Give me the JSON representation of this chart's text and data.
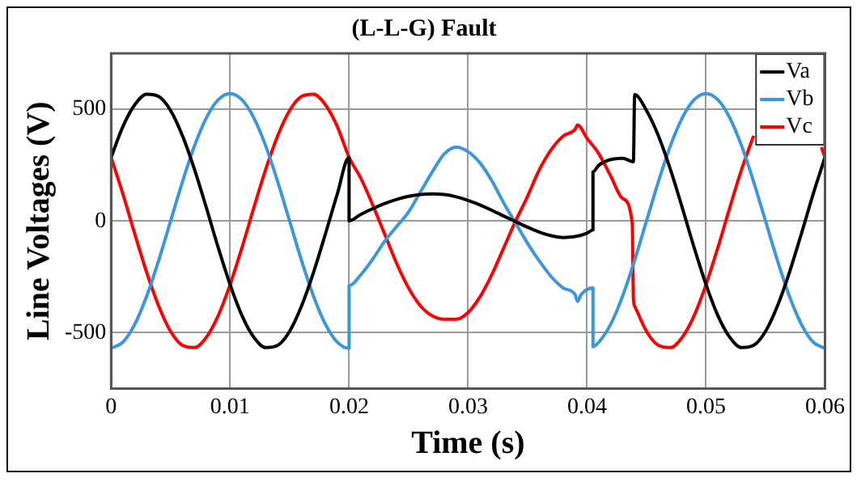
{
  "chart_data": {
    "type": "line",
    "title": "(L-L-G) Fault",
    "xlabel": "Time (s)",
    "ylabel": "Line Voltages (V)",
    "xlim": [
      0,
      0.06
    ],
    "xticks": [
      0,
      0.01,
      0.02,
      0.03,
      0.04,
      0.05,
      0.06
    ],
    "ylim": [
      -750,
      750
    ],
    "yticks": [
      -500,
      0,
      500
    ],
    "grid": true,
    "legend": "top right",
    "marker": "none",
    "line_style": "solid",
    "series": [
      {
        "name": "Va",
        "color": "#000000",
        "x": [
          0,
          0.001,
          0.002,
          0.003,
          0.004,
          0.005,
          0.006,
          0.007,
          0.008,
          0.009,
          0.01,
          0.011,
          0.012,
          0.013,
          0.014,
          0.015,
          0.016,
          0.017,
          0.018,
          0.019,
          0.02,
          0.02,
          0.021,
          0.022,
          0.023,
          0.024,
          0.025,
          0.026,
          0.027,
          0.028,
          0.029,
          0.03,
          0.031,
          0.032,
          0.033,
          0.034,
          0.035,
          0.036,
          0.037,
          0.038,
          0.039,
          0.04,
          0.0405,
          0.0405,
          0.041,
          0.042,
          0.043,
          0.0439,
          0.044,
          0.045,
          0.046,
          0.047,
          0.048,
          0.049,
          0.05,
          0.051,
          0.052,
          0.053,
          0.054,
          0.055,
          0.056,
          0.057,
          0.058,
          0.059,
          0.06
        ],
        "values": [
          285,
          424,
          521,
          567,
          557,
          494,
          381,
          232,
          60,
          -119,
          -285,
          -424,
          -521,
          -567,
          -557,
          -494,
          -381,
          -232,
          -60,
          119,
          285,
          0,
          30,
          55,
          78,
          96,
          110,
          118,
          121,
          118,
          108,
          92,
          72,
          48,
          22,
          -3,
          -28,
          -50,
          -66,
          -74,
          -70,
          -55,
          -40,
          220,
          250,
          275,
          280,
          265,
          565,
          494,
          381,
          232,
          60,
          -119,
          -285,
          -424,
          -521,
          -567,
          -557,
          -494,
          -381,
          -232,
          -60,
          119,
          285
        ]
      },
      {
        "name": "Vb",
        "color": "#3a96dd",
        "x": [
          0,
          0.001,
          0.002,
          0.003,
          0.004,
          0.005,
          0.006,
          0.007,
          0.008,
          0.009,
          0.01,
          0.011,
          0.012,
          0.013,
          0.014,
          0.015,
          0.016,
          0.017,
          0.018,
          0.019,
          0.02,
          0.02,
          0.021,
          0.022,
          0.023,
          0.024,
          0.025,
          0.026,
          0.027,
          0.028,
          0.029,
          0.03,
          0.031,
          0.032,
          0.033,
          0.034,
          0.035,
          0.036,
          0.037,
          0.038,
          0.039,
          0.0392,
          0.0395,
          0.0405,
          0.0405,
          0.041,
          0.042,
          0.043,
          0.044,
          0.045,
          0.046,
          0.047,
          0.048,
          0.049,
          0.05,
          0.051,
          0.052,
          0.053,
          0.054,
          0.055,
          0.056,
          0.057,
          0.058,
          0.059,
          0.06
        ],
        "values": [
          -570,
          -542,
          -461,
          -335,
          -176,
          0,
          176,
          335,
          461,
          542,
          570,
          542,
          461,
          335,
          176,
          0,
          -176,
          -335,
          -461,
          -542,
          -570,
          -290,
          -240,
          -170,
          -90,
          -25,
          40,
          130,
          220,
          300,
          330,
          310,
          260,
          180,
          80,
          -10,
          -100,
          -180,
          -250,
          -300,
          -330,
          -360,
          -330,
          -300,
          -563,
          -542,
          -461,
          -335,
          -176,
          0,
          176,
          335,
          461,
          542,
          570,
          542,
          461,
          335,
          176,
          0,
          -176,
          -335,
          -461,
          -542,
          -570
        ]
      },
      {
        "name": "Vc",
        "color": "#ff0000",
        "x": [
          0,
          0.001,
          0.002,
          0.003,
          0.004,
          0.005,
          0.006,
          0.007,
          0.008,
          0.009,
          0.01,
          0.011,
          0.012,
          0.013,
          0.014,
          0.015,
          0.016,
          0.017,
          0.018,
          0.019,
          0.02,
          0.021,
          0.022,
          0.023,
          0.024,
          0.025,
          0.026,
          0.027,
          0.028,
          0.029,
          0.03,
          0.031,
          0.032,
          0.033,
          0.034,
          0.035,
          0.036,
          0.037,
          0.038,
          0.039,
          0.0392,
          0.04,
          0.041,
          0.042,
          0.043,
          0.0438,
          0.0439,
          0.044,
          0.045,
          0.046,
          0.047,
          0.048,
          0.049,
          0.05,
          0.051,
          0.052,
          0.053,
          0.054,
          0.055,
          0.056,
          0.057,
          0.058,
          0.0597,
          0.06
        ],
        "values": [
          285,
          119,
          -60,
          -232,
          -381,
          -494,
          -557,
          -567,
          -521,
          -424,
          -285,
          -119,
          60,
          232,
          381,
          494,
          557,
          567,
          521,
          424,
          285,
          190,
          70,
          -60,
          -190,
          -300,
          -380,
          -425,
          -440,
          -440,
          -410,
          -340,
          -240,
          -120,
          0,
          110,
          230,
          320,
          380,
          410,
          430,
          370,
          300,
          200,
          100,
          -10,
          -350,
          -381,
          -494,
          -557,
          -567,
          -521,
          -424,
          -285,
          -119,
          60,
          232,
          381,
          null,
          null,
          null,
          null,
          330,
          285
        ]
      }
    ]
  }
}
